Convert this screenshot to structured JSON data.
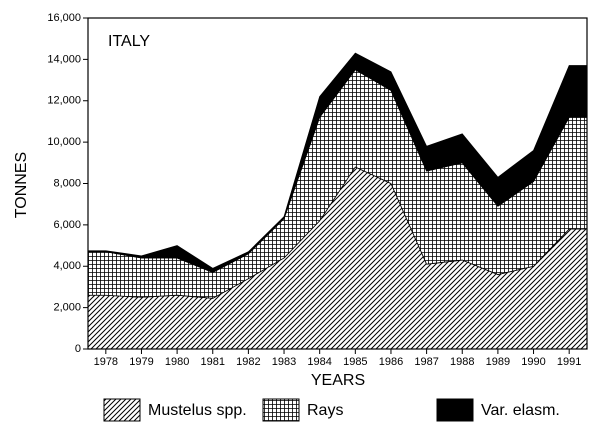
{
  "chart_data": {
    "type": "stacked-area",
    "annotation": "ITALY",
    "x_label": "YEARS",
    "y_label": "TONNES",
    "categories": [
      "1978",
      "1979",
      "1980",
      "1981",
      "1982",
      "1983",
      "1984",
      "1985",
      "1986",
      "1987",
      "1988",
      "1989",
      "1990",
      "1991"
    ],
    "series": [
      {
        "name": "Mustelus spp.",
        "color": "#000000",
        "pattern": "hatch",
        "values": [
          2600,
          2500,
          2600,
          2450,
          3400,
          4400,
          6200,
          8800,
          8000,
          4100,
          4300,
          3600,
          4000,
          5800
        ]
      },
      {
        "name": "Rays",
        "color": "#000000",
        "pattern": "grid",
        "values": [
          2100,
          1900,
          1800,
          1250,
          1200,
          1900,
          5000,
          4700,
          4500,
          4500,
          4700,
          3300,
          4100,
          5400
        ]
      },
      {
        "name": "Var. elasm.",
        "color": "#000000",
        "pattern": "solid",
        "values": [
          50,
          100,
          600,
          200,
          100,
          100,
          1000,
          800,
          900,
          1200,
          1400,
          1400,
          1500,
          2500
        ]
      }
    ],
    "ylim": [
      0,
      16000
    ],
    "yticks": [
      0,
      {
        "value": 2000,
        "label": "2,000"
      },
      {
        "value": 4000,
        "label": "4,000"
      },
      {
        "value": 6000,
        "label": "6,000"
      },
      {
        "value": 8000,
        "label": "8,000"
      },
      {
        "value": 10000,
        "label": "10,000"
      },
      {
        "value": 12000,
        "label": "12,000"
      },
      {
        "value": 14000,
        "label": "14,000"
      },
      {
        "value": 16000,
        "label": "16,000"
      }
    ],
    "grid": false
  }
}
